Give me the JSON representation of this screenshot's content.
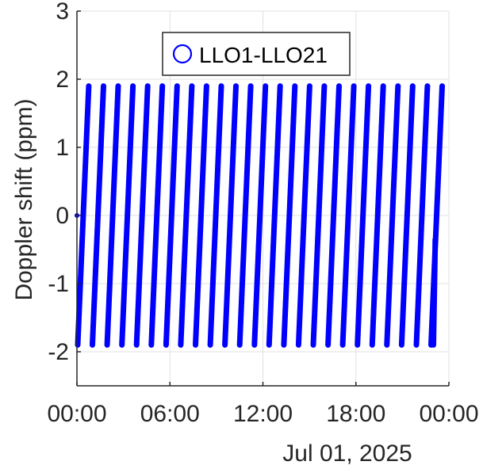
{
  "chart_data": {
    "type": "line",
    "ylabel": "Doppler shift (ppm)",
    "date_label": "Jul 01, 2025",
    "ylim": [
      -2.5,
      3
    ],
    "xlim_hours": [
      0,
      24
    ],
    "y_ticks": [
      {
        "value": 3,
        "label": "3"
      },
      {
        "value": 2,
        "label": "2"
      },
      {
        "value": 1,
        "label": "1"
      },
      {
        "value": 0,
        "label": "0"
      },
      {
        "value": -1,
        "label": "-1"
      },
      {
        "value": -2,
        "label": "-2"
      }
    ],
    "x_ticks": [
      {
        "value": 0,
        "label": "00:00"
      },
      {
        "value": 6,
        "label": "06:00"
      },
      {
        "value": 12,
        "label": "12:00"
      },
      {
        "value": 18,
        "label": "18:00"
      },
      {
        "value": 24,
        "label": "00:00"
      }
    ],
    "grid": true,
    "legend_position": "top",
    "series": [
      {
        "name": "LLO1-LLO21",
        "color": "#0000ff",
        "marker": "circle",
        "period_hours": 0.95,
        "min": -1.9,
        "max": 1.9,
        "start_value": 0,
        "end_value": -0.35
      }
    ]
  }
}
